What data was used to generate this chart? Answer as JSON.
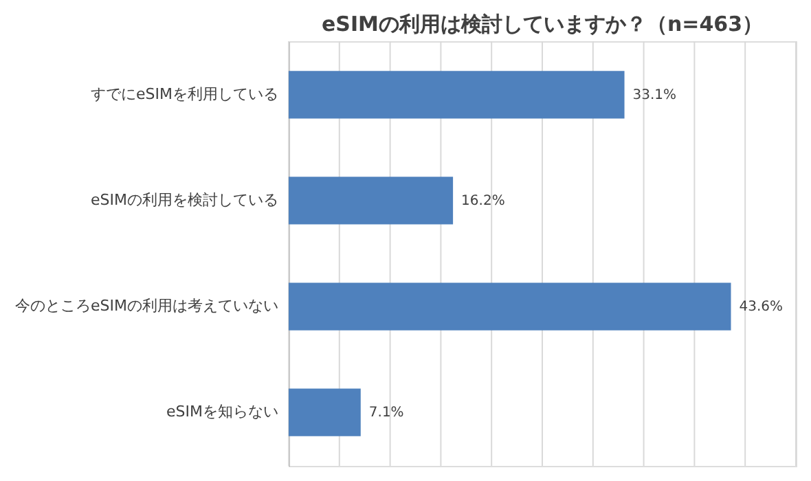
{
  "chart_data": {
    "type": "bar",
    "orientation": "horizontal",
    "title": "eSIMの利用は検討していますか？（n=463）",
    "categories": [
      "すでにeSIMを利用している",
      "eSIMの利用を検討している",
      "今のところeSIMの利用は考えていない",
      "eSIMを知らない"
    ],
    "values": [
      33.1,
      16.2,
      43.6,
      7.1
    ],
    "color": "#4f81bd",
    "value_labels": [
      "33.1%",
      "16.2%",
      "43.6%",
      "7.1%"
    ],
    "xlim": [
      0,
      50
    ],
    "xticks": [
      {
        "value": 0,
        "label": null
      },
      {
        "value": 5,
        "label": null
      },
      {
        "value": 10,
        "label": null
      },
      {
        "value": 15,
        "label": null
      },
      {
        "value": 20,
        "label": null
      },
      {
        "value": 25,
        "label": null
      },
      {
        "value": 30,
        "label": null
      },
      {
        "value": 35,
        "label": null
      },
      {
        "value": 40,
        "label": null
      },
      {
        "value": 45,
        "label": null
      },
      {
        "value": 50,
        "label": null
      }
    ],
    "grid": "x",
    "tick_labels": "y"
  }
}
